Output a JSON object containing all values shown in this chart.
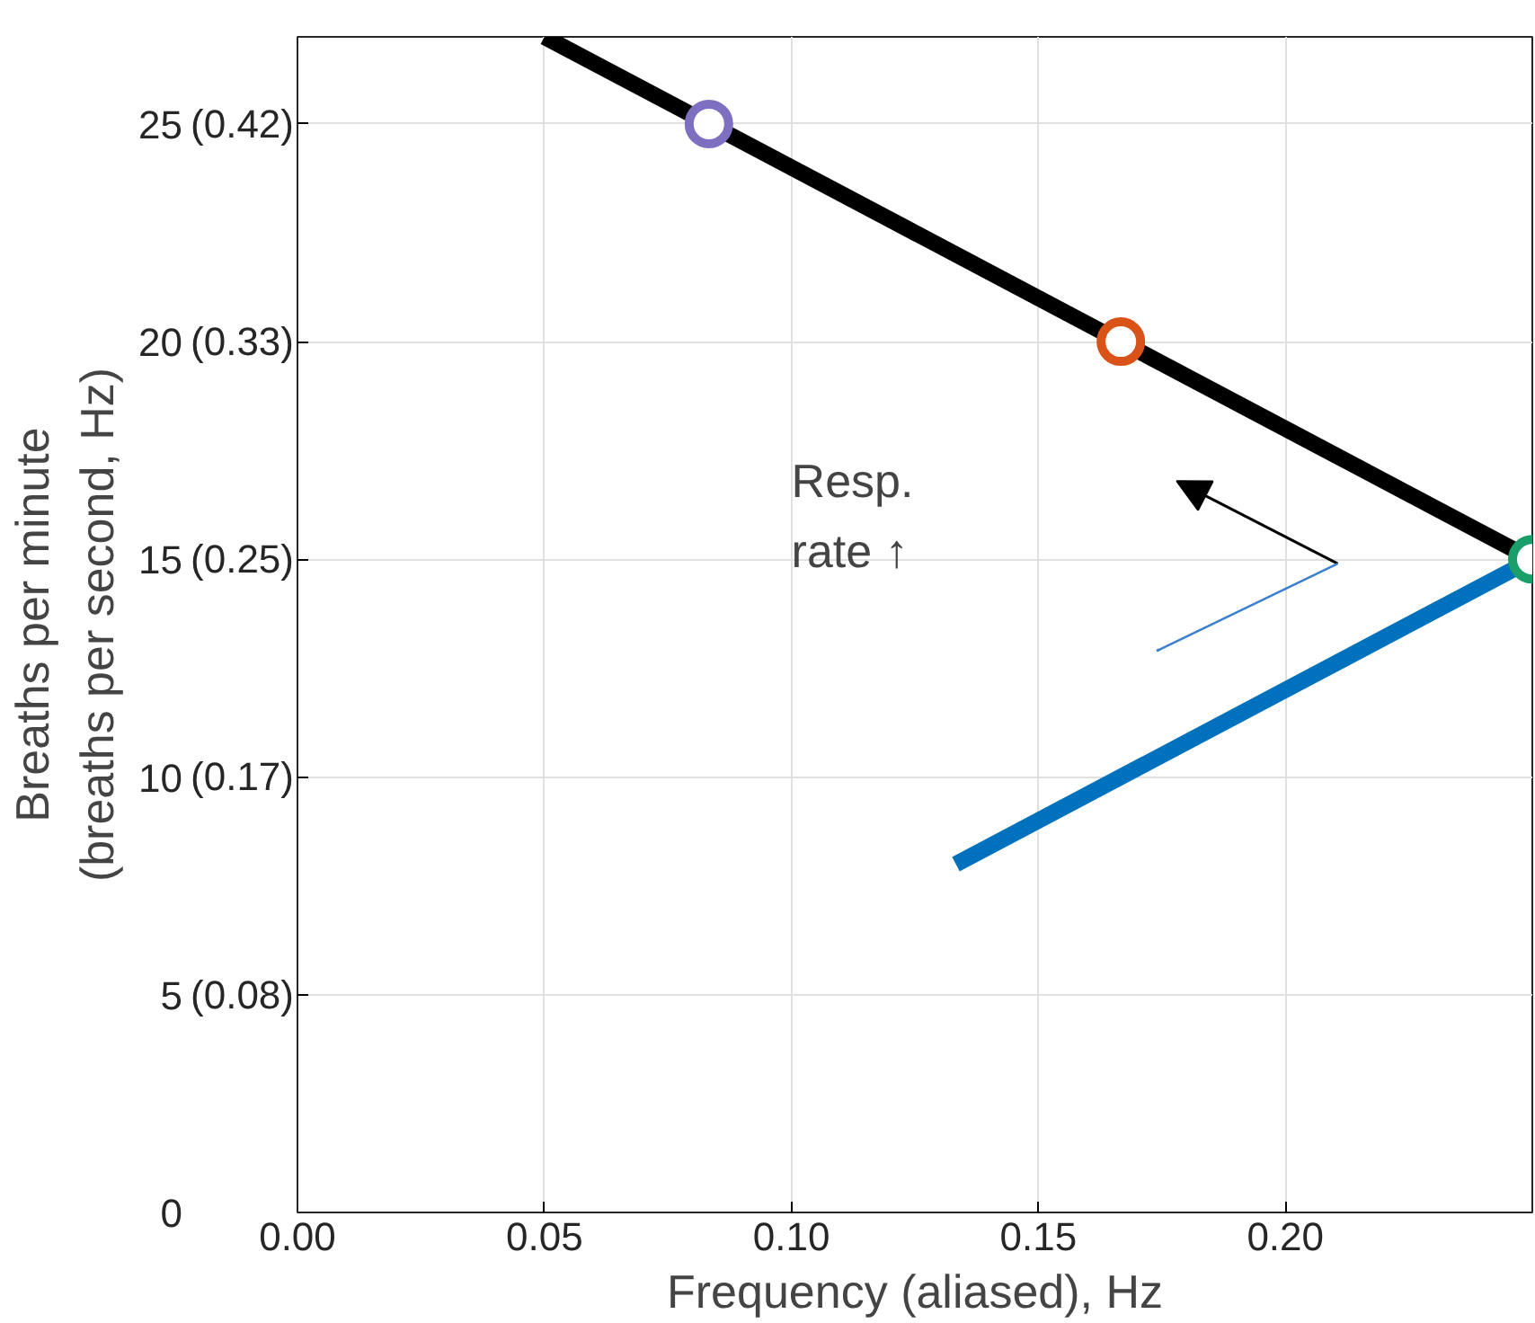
{
  "chart_data": {
    "type": "line",
    "xlabel": "Frequency (aliased), Hz",
    "ylabel": "Breaths per minute\n(breaths per second, Hz)",
    "xlim": [
      0,
      0.25
    ],
    "ylim": [
      0,
      27
    ],
    "xticks": [
      {
        "value": 0,
        "label": "0.00"
      },
      {
        "value": 0.05,
        "label": "0.05"
      },
      {
        "value": 0.1,
        "label": "0.10"
      },
      {
        "value": 0.15,
        "label": "0.15"
      },
      {
        "value": 0.2,
        "label": "0.20"
      }
    ],
    "yticks": [
      0,
      5,
      10,
      15,
      20,
      25
    ],
    "y2lim": [
      0,
      0.45
    ],
    "y2ticks": [
      {
        "value": 0.0833,
        "label": "(0.08)"
      },
      {
        "value": 0.1667,
        "label": "(0.17)"
      },
      {
        "value": 0.25,
        "label": "(0.25)"
      },
      {
        "value": 0.3333,
        "label": "(0.33)"
      },
      {
        "value": 0.4167,
        "label": "(0.42)"
      }
    ],
    "grid": true,
    "series": [
      {
        "color": "#000000",
        "x": [
          0.05,
          0.25
        ],
        "values": [
          27,
          15
        ]
      },
      {
        "color": "#0072bd",
        "x": [
          0.1333,
          0.25
        ],
        "values": [
          8,
          15
        ]
      },
      {
        "type": "scatter",
        "marker": "circle",
        "colors": [
          "#7e6fc0",
          "#d95319",
          "#1a9e6a"
        ],
        "x": [
          0.0833,
          0.1667,
          0.25
        ],
        "values": [
          25,
          20,
          15
        ]
      }
    ],
    "annotations": [
      "Resp.\nrate ↑"
    ]
  }
}
